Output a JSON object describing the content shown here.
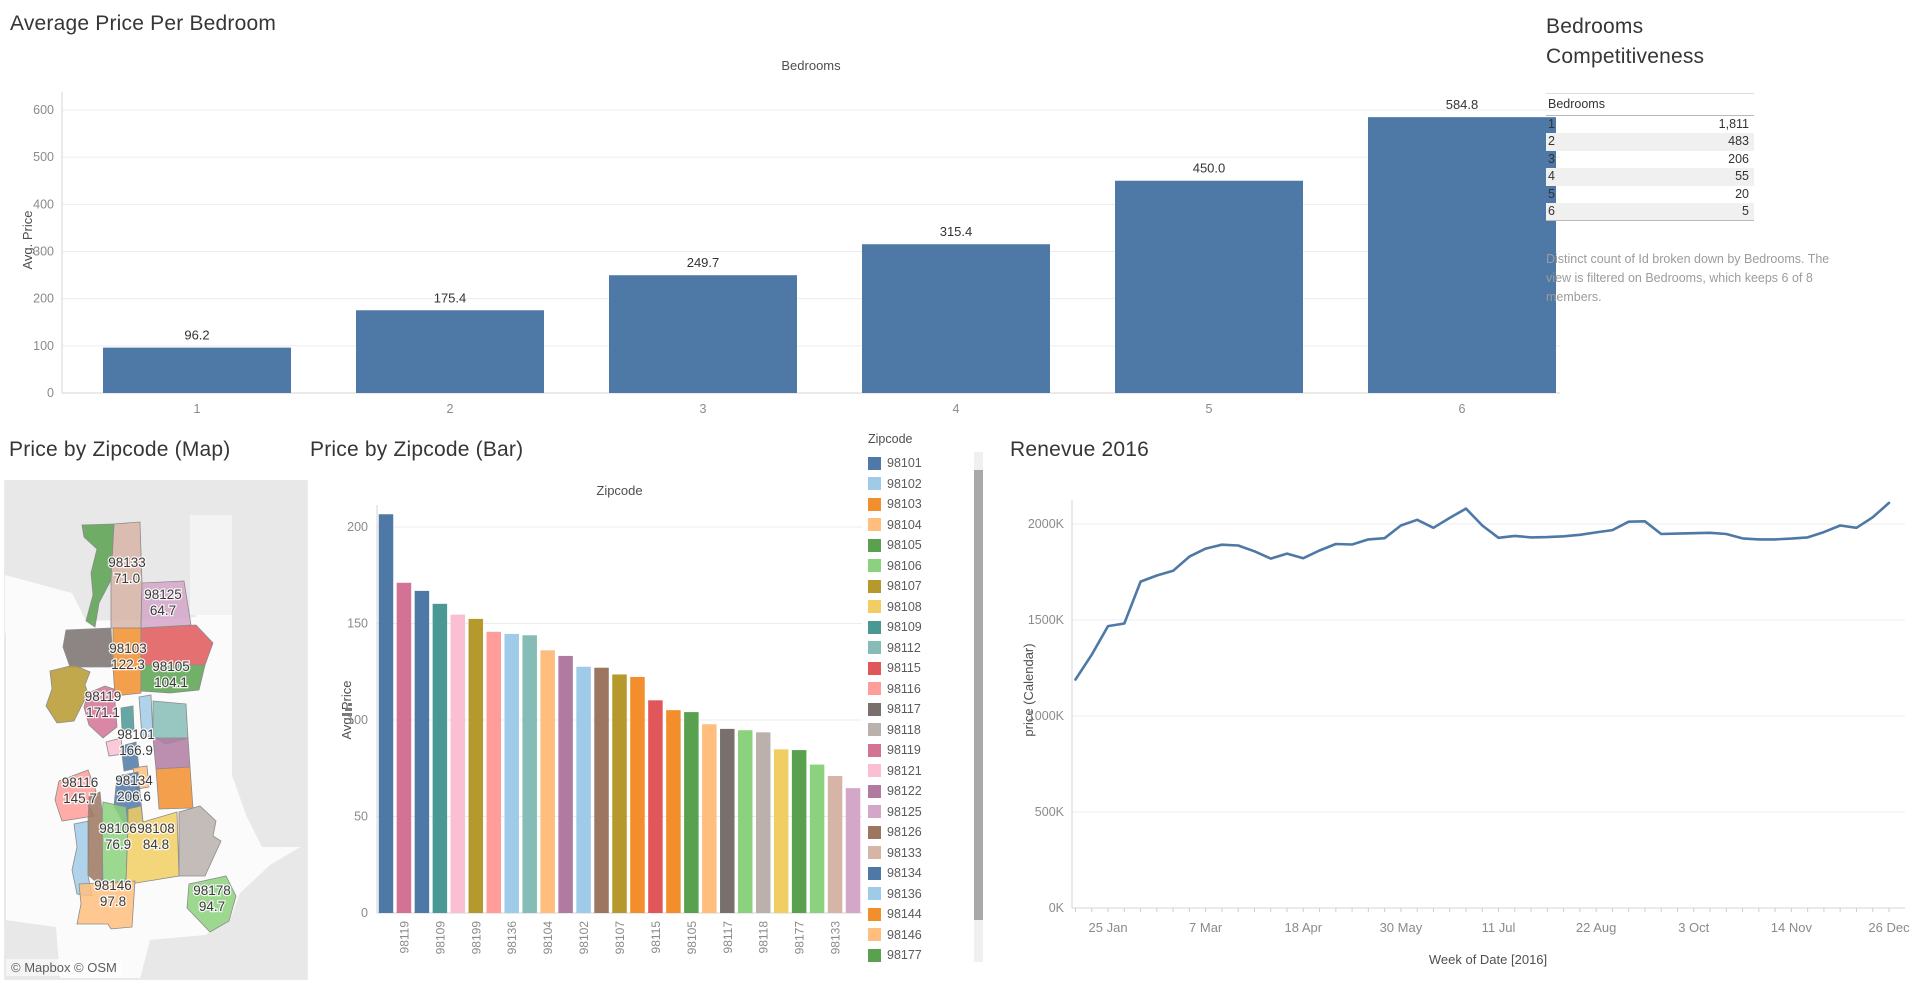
{
  "panels": {
    "top_bar": {
      "title": "Average Price Per Bedroom",
      "field_label": "Bedrooms",
      "y_axis_label": "Avg. Price"
    },
    "bedrooms_table": {
      "title": "Bedrooms Competitiveness",
      "caption": "Distinct count of Id broken down by Bedrooms. The view is filtered on Bedrooms, which keeps 6 of 8 members."
    },
    "map": {
      "title": "Price by Zipcode (Map)",
      "attribution": "© Mapbox © OSM"
    },
    "zip_bar": {
      "title": "Price by Zipcode (Bar)",
      "field_label": "Zipcode",
      "y_axis_label": "Avg. Price"
    },
    "legend": {
      "title": "Zipcode",
      "items": [
        {
          "label": "98101",
          "color": "#4e79a7"
        },
        {
          "label": "98102",
          "color": "#a0cbe8"
        },
        {
          "label": "98103",
          "color": "#f28e2b"
        },
        {
          "label": "98104",
          "color": "#ffbe7d"
        },
        {
          "label": "98105",
          "color": "#59a14f"
        },
        {
          "label": "98106",
          "color": "#8cd17d"
        },
        {
          "label": "98107",
          "color": "#b6992d"
        },
        {
          "label": "98108",
          "color": "#f1ce63"
        },
        {
          "label": "98109",
          "color": "#499894"
        },
        {
          "label": "98112",
          "color": "#86bcb6"
        },
        {
          "label": "98115",
          "color": "#e15759"
        },
        {
          "label": "98116",
          "color": "#ff9d9a"
        },
        {
          "label": "98117",
          "color": "#79706e"
        },
        {
          "label": "98118",
          "color": "#bab0ac"
        },
        {
          "label": "98119",
          "color": "#d37295"
        },
        {
          "label": "98121",
          "color": "#fabfd2"
        },
        {
          "label": "98122",
          "color": "#b07aa1"
        },
        {
          "label": "98125",
          "color": "#d4a6c8"
        },
        {
          "label": "98126",
          "color": "#9d7660"
        },
        {
          "label": "98133",
          "color": "#d7b5a6"
        },
        {
          "label": "98134",
          "color": "#4e79a7"
        },
        {
          "label": "98136",
          "color": "#a0cbe8"
        },
        {
          "label": "98144",
          "color": "#f28e2b"
        },
        {
          "label": "98146",
          "color": "#ffbe7d"
        },
        {
          "label": "98177",
          "color": "#59a14f"
        }
      ]
    },
    "revenue": {
      "title": "Renevue 2016",
      "x_axis_label": "Week of Date [2016]",
      "y_axis_label": "price (Calendar)"
    }
  },
  "chart_data": [
    {
      "id": "avg_price_per_bedroom",
      "type": "bar",
      "title": "Average Price Per Bedroom",
      "xlabel": "Bedrooms",
      "ylabel": "Avg. Price",
      "categories": [
        "1",
        "2",
        "3",
        "4",
        "5",
        "6"
      ],
      "values": [
        96.2,
        175.4,
        249.7,
        315.4,
        450.0,
        584.8
      ],
      "bar_labels": [
        "96.2",
        "175.4",
        "249.7",
        "315.4",
        "450.0",
        "584.8"
      ],
      "y_ticks": [
        0,
        100,
        200,
        300,
        400,
        500,
        600
      ],
      "ylim": [
        0,
        636
      ],
      "grid": true,
      "legend_position": "none",
      "bar_color": "#4e79a7"
    },
    {
      "id": "price_by_zipcode_bar",
      "type": "bar",
      "title": "Price by Zipcode (Bar)",
      "xlabel": "Zipcode",
      "ylabel": "Avg. Price",
      "sort": "descending",
      "categories": [
        "98134",
        "98119",
        "98101",
        "98109",
        "98121",
        "98199",
        "98116",
        "98136",
        "98112",
        "98104",
        "98122",
        "98102",
        "98126",
        "98107",
        "98103",
        "98115",
        "98144",
        "98105",
        "98146",
        "98117",
        "98178",
        "98118",
        "98108",
        "98177",
        "98106",
        "98133",
        "98125"
      ],
      "values": [
        206.6,
        171.1,
        166.9,
        160.2,
        154.6,
        152.4,
        145.7,
        144.6,
        143.9,
        136.1,
        133.2,
        127.6,
        127.1,
        123.6,
        122.3,
        110.2,
        105.1,
        104.1,
        97.8,
        95.4,
        94.7,
        93.6,
        84.8,
        84.4,
        76.9,
        71.0,
        64.7
      ],
      "colors": [
        "#4e79a7",
        "#d37295",
        "#4e79a7",
        "#499894",
        "#fabfd2",
        "#b6992d",
        "#ff9d9a",
        "#a0cbe8",
        "#86bcb6",
        "#ffbe7d",
        "#b07aa1",
        "#a0cbe8",
        "#9d7660",
        "#b6992d",
        "#f28e2b",
        "#e15759",
        "#f28e2b",
        "#59a14f",
        "#ffbe7d",
        "#79706e",
        "#8cd17d",
        "#bab0ac",
        "#f1ce63",
        "#59a14f",
        "#8cd17d",
        "#d7b5a6",
        "#d4a6c8"
      ],
      "x_tick_labels_shown": [
        "98119",
        "98109",
        "98199",
        "98136",
        "98104",
        "98102",
        "98107",
        "98115",
        "98105",
        "98117",
        "98118",
        "98177",
        "98133"
      ],
      "y_ticks": [
        0,
        50,
        100,
        150,
        200
      ],
      "ylim": [
        0,
        215
      ],
      "grid": true,
      "legend_position": "right"
    },
    {
      "id": "revenue_2016",
      "type": "line",
      "title": "Renevue 2016",
      "xlabel": "Week of Date [2016]",
      "ylabel": "price (Calendar)",
      "x_tick_labels": [
        "25 Jan",
        "7 Mar",
        "18 Apr",
        "30 May",
        "11 Jul",
        "22 Aug",
        "3 Oct",
        "14 Nov",
        "26 Dec"
      ],
      "x_tick_indices": [
        2,
        8,
        14,
        20,
        26,
        32,
        38,
        44,
        50
      ],
      "values_thousands": [
        1190,
        1320,
        1468,
        1482,
        1700,
        1732,
        1756,
        1830,
        1872,
        1892,
        1888,
        1858,
        1820,
        1846,
        1822,
        1862,
        1896,
        1893,
        1920,
        1926,
        1992,
        2022,
        1980,
        2032,
        2080,
        1992,
        1928,
        1938,
        1930,
        1932,
        1936,
        1944,
        1956,
        1968,
        2012,
        2014,
        1948,
        1950,
        1952,
        1954,
        1948,
        1925,
        1920,
        1920,
        1924,
        1930,
        1958,
        1992,
        1980,
        2035,
        2110
      ],
      "y_tick_labels": [
        "0K",
        "500K",
        "1000K",
        "1500K",
        "2000K"
      ],
      "y_tick_values": [
        0,
        500,
        1000,
        1500,
        2000
      ],
      "ylim": [
        0,
        2300
      ],
      "grid": true,
      "line_color": "#4e79a7"
    },
    {
      "id": "bedrooms_competitiveness",
      "type": "table",
      "title": "Bedrooms Competitiveness",
      "header": "Bedrooms",
      "rows": [
        [
          "1",
          "1,811"
        ],
        [
          "2",
          "483"
        ],
        [
          "3",
          "206"
        ],
        [
          "4",
          "55"
        ],
        [
          "5",
          "20"
        ],
        [
          "6",
          "5"
        ]
      ]
    },
    {
      "id": "price_by_zipcode_map",
      "type": "map",
      "title": "Price by Zipcode (Map)",
      "regions": [
        {
          "zip": "98177",
          "value": null,
          "color": "#59a14f"
        },
        {
          "zip": "98133",
          "value": "71.0",
          "color": "#d7b5a6"
        },
        {
          "zip": "98125",
          "value": "64.7",
          "color": "#d4a6c8"
        },
        {
          "zip": "98117",
          "value": null,
          "color": "#79706e"
        },
        {
          "zip": "98103",
          "value": "122.3",
          "color": "#f28e2b"
        },
        {
          "zip": "98115",
          "value": null,
          "color": "#e15759"
        },
        {
          "zip": "98105",
          "value": "104.1",
          "color": "#59a14f"
        },
        {
          "zip": "98199",
          "value": null,
          "color": "#b6992d"
        },
        {
          "zip": "98119",
          "value": "171.1",
          "color": "#d37295"
        },
        {
          "zip": "98109",
          "value": null,
          "color": "#499894"
        },
        {
          "zip": "98102",
          "value": null,
          "color": "#a0cbe8"
        },
        {
          "zip": "98112",
          "value": null,
          "color": "#86bcb6"
        },
        {
          "zip": "98121",
          "value": null,
          "color": "#fabfd2"
        },
        {
          "zip": "98101",
          "value": "166.9",
          "color": "#4e79a7"
        },
        {
          "zip": "98122",
          "value": null,
          "color": "#b07aa1"
        },
        {
          "zip": "98104",
          "value": null,
          "color": "#ffbe7d"
        },
        {
          "zip": "98144",
          "value": null,
          "color": "#f28e2b"
        },
        {
          "zip": "98134",
          "value": "206.6",
          "color": "#4e79a7"
        },
        {
          "zip": "98116",
          "value": "145.7",
          "color": "#ff9d9a"
        },
        {
          "zip": "98136",
          "value": null,
          "color": "#a0cbe8"
        },
        {
          "zip": "98126",
          "value": null,
          "color": "#9d7660"
        },
        {
          "zip": "98106",
          "value": "76.9",
          "color": "#8cd17d"
        },
        {
          "zip": "98108",
          "value": "84.8",
          "color": "#f1ce63"
        },
        {
          "zip": "98118",
          "value": null,
          "color": "#bab0ac"
        },
        {
          "zip": "98146",
          "value": "97.8",
          "color": "#ffbe7d"
        },
        {
          "zip": "98178",
          "value": "94.7",
          "color": "#8cd17d"
        }
      ]
    }
  ]
}
